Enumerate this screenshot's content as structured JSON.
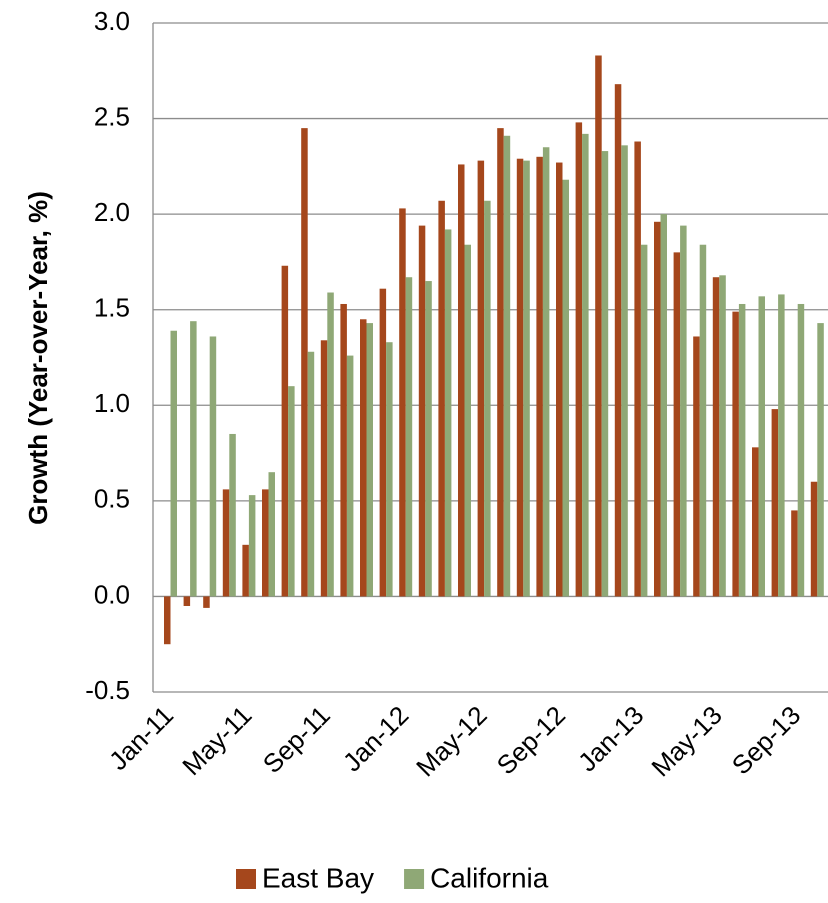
{
  "chart_data": {
    "type": "bar",
    "y_label": "Growth (Year-over-Year, %)",
    "categories": [
      "Jan-11",
      null,
      null,
      null,
      "May-11",
      null,
      null,
      null,
      "Sep-11",
      null,
      null,
      null,
      "Jan-12",
      null,
      null,
      null,
      "May-12",
      null,
      null,
      null,
      "Sep-12",
      null,
      null,
      null,
      "Jan-13",
      null,
      null,
      null,
      "May-13",
      null,
      null,
      null,
      "Sep-13",
      null
    ],
    "series": [
      {
        "name": "East Bay",
        "color": "#a5471c",
        "values": [
          -0.25,
          -0.05,
          -0.06,
          0.56,
          0.27,
          0.56,
          1.73,
          2.45,
          1.34,
          1.53,
          1.45,
          1.61,
          2.03,
          1.94,
          2.07,
          2.26,
          2.28,
          2.45,
          2.29,
          2.3,
          2.27,
          2.48,
          2.83,
          2.68,
          2.38,
          1.96,
          1.8,
          1.36,
          1.67,
          1.49,
          0.78,
          0.98,
          0.45,
          0.6
        ]
      },
      {
        "name": "California",
        "color": "#8fa876",
        "values": [
          1.39,
          1.44,
          1.36,
          0.85,
          0.53,
          0.65,
          1.1,
          1.28,
          1.59,
          1.26,
          1.43,
          1.33,
          1.67,
          1.65,
          1.92,
          1.84,
          2.07,
          2.41,
          2.28,
          2.35,
          2.18,
          2.42,
          2.33,
          2.36,
          1.84,
          2.0,
          1.94,
          1.84,
          1.68,
          1.53,
          1.57,
          1.58,
          1.53,
          1.43
        ]
      }
    ],
    "ylim": [
      -0.5,
      3.0
    ],
    "yticks": [
      {
        "value": -0.5,
        "label": "-0.5"
      },
      {
        "value": 0,
        "label": "0.0"
      },
      0.5,
      {
        "value": 1,
        "label": "1.0"
      },
      1.5,
      {
        "value": 2,
        "label": "2.0"
      },
      2.5,
      {
        "value": 3,
        "label": "3.0"
      }
    ],
    "grid": true,
    "legend": "bottom"
  }
}
